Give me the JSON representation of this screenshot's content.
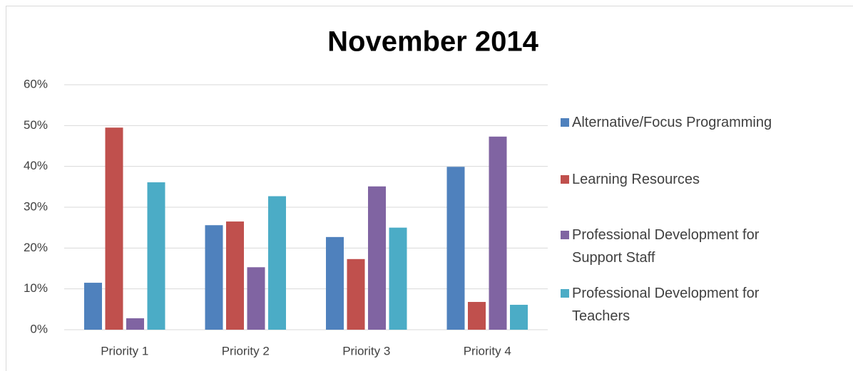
{
  "chart_data": {
    "type": "bar",
    "title": "November 2014",
    "categories": [
      "Priority 1",
      "Priority 2",
      "Priority 3",
      "Priority 4"
    ],
    "series": [
      {
        "name": "Alternative/Focus Programming",
        "color": "#4f81bd",
        "values": [
          11.5,
          25.6,
          22.7,
          39.9
        ]
      },
      {
        "name": "Learning Resources",
        "color": "#c0504d",
        "values": [
          49.5,
          26.5,
          17.3,
          6.8
        ]
      },
      {
        "name": "Professional Development for Support Staff",
        "color": "#8064a2",
        "values": [
          2.8,
          15.3,
          35.1,
          47.3
        ]
      },
      {
        "name": "Professional Development for Teachers",
        "color": "#4bacc6",
        "values": [
          36.1,
          32.7,
          25.0,
          6.1
        ]
      }
    ],
    "ylim": [
      0,
      60
    ],
    "yticks": [
      {
        "value": 0,
        "label": "0%"
      },
      {
        "value": 10,
        "label": "10%"
      },
      {
        "value": 20,
        "label": "20%"
      },
      {
        "value": 30,
        "label": "30%"
      },
      {
        "value": 40,
        "label": "40%"
      },
      {
        "value": 50,
        "label": "50%"
      },
      {
        "value": 60,
        "label": "60%"
      }
    ],
    "grid": true,
    "legend": "right"
  }
}
